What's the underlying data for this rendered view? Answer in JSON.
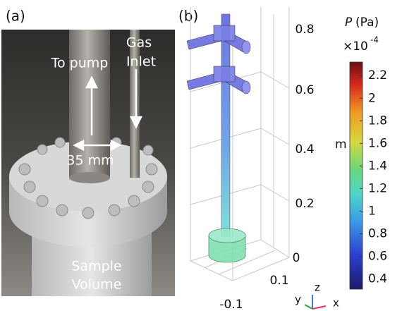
{
  "panel_a": {
    "label": "(a)",
    "to_pump": "To pump",
    "gas": "Gas",
    "inlet": "Inlet",
    "distance": "35 mm",
    "sample": "Sample",
    "volume": "Volume"
  },
  "panel_b": {
    "label": "(b)",
    "z_ticks": [
      0.8,
      0.6,
      0.4,
      0.2,
      0
    ],
    "z_unit": "m",
    "y_tick": 0.1,
    "x_tick": -0.1,
    "triad": {
      "x": "x",
      "y": "y",
      "z": "z"
    }
  },
  "colorbar": {
    "symbol": "P",
    "unit": "(Pa)",
    "multiplier": "×10",
    "exponent": "-4",
    "lim": [
      0.31,
      2.32
    ],
    "ticks": [
      2.2,
      2,
      1.8,
      1.6,
      1.4,
      1.2,
      1,
      0.8,
      0.6,
      0.4
    ]
  }
}
